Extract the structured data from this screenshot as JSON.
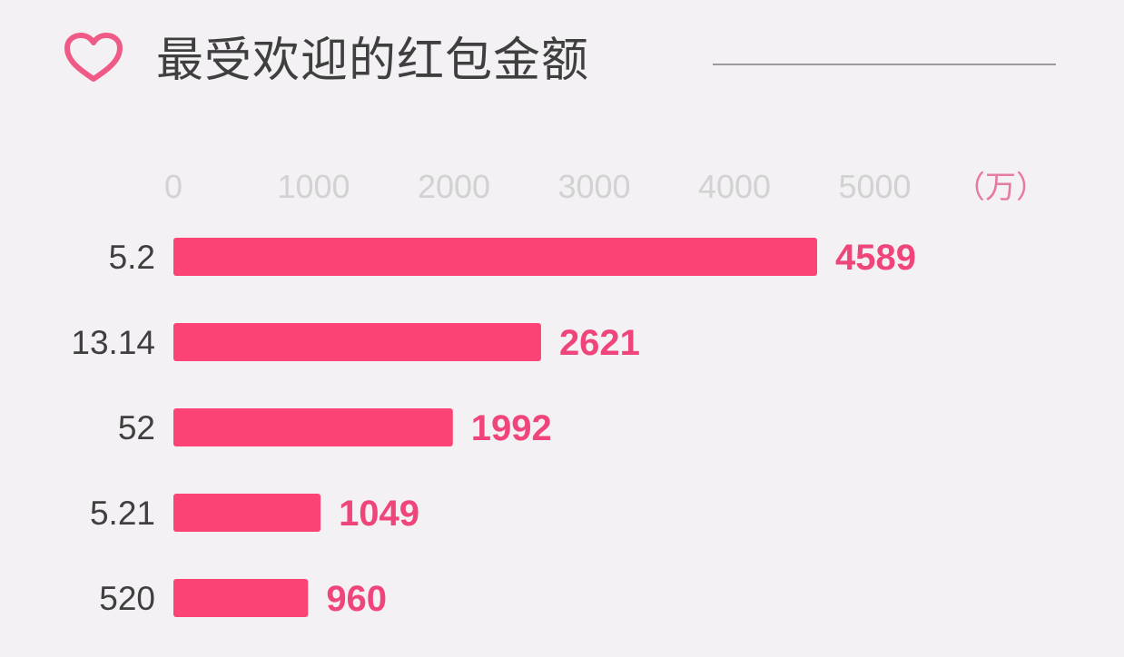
{
  "title": "最受欢迎的红包金额",
  "colors": {
    "background": "#f3f1f3",
    "bar": "#fb4475",
    "value_label": "#f0457a",
    "tick_label": "#d2d2d2",
    "unit_label": "#e77aa1",
    "category_label": "#3f3f3f",
    "heart_icon": "#ef5b86"
  },
  "icons": {
    "header": "heart-outline-icon"
  },
  "chart_data": {
    "type": "bar",
    "orientation": "horizontal",
    "title": "最受欢迎的红包金额",
    "unit": "（万）",
    "categories": [
      "5.2",
      "13.14",
      "52",
      "5.21",
      "520"
    ],
    "values": [
      4589,
      2621,
      1992,
      1049,
      960
    ],
    "value_labels": [
      "4589",
      "2621",
      "1992",
      "1049",
      "960"
    ],
    "xticks": [
      0,
      1000,
      2000,
      3000,
      4000,
      5000
    ],
    "xtick_labels": [
      "0",
      "1000",
      "2000",
      "3000",
      "4000",
      "5000"
    ],
    "xlim": [
      0,
      5000
    ],
    "tick_position": "top",
    "grid": false,
    "legend": "none"
  }
}
